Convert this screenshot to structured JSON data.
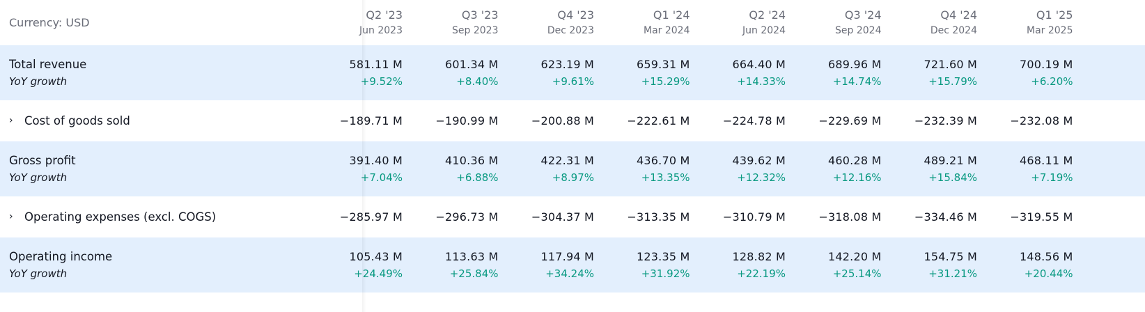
{
  "header": {
    "currency_label": "Currency: USD",
    "periods": [
      {
        "quarter": "Q2 '23",
        "date": "Jun 2023"
      },
      {
        "quarter": "Q3 '23",
        "date": "Sep 2023"
      },
      {
        "quarter": "Q4 '23",
        "date": "Dec 2023"
      },
      {
        "quarter": "Q1 '24",
        "date": "Mar 2024"
      },
      {
        "quarter": "Q2 '24",
        "date": "Jun 2024"
      },
      {
        "quarter": "Q3 '24",
        "date": "Sep 2024"
      },
      {
        "quarter": "Q4 '24",
        "date": "Dec 2024"
      },
      {
        "quarter": "Q1 '25",
        "date": "Mar 2025"
      }
    ]
  },
  "rows": [
    {
      "name": "Total revenue",
      "sub": "YoY growth",
      "expandable": false,
      "highlight": true,
      "values": [
        "581.11 M",
        "601.34 M",
        "623.19 M",
        "659.31 M",
        "664.40 M",
        "689.96 M",
        "721.60 M",
        "700.19 M"
      ],
      "growth": [
        "+9.52%",
        "+8.40%",
        "+9.61%",
        "+15.29%",
        "+14.33%",
        "+14.74%",
        "+15.79%",
        "+6.20%"
      ]
    },
    {
      "name": "Cost of goods sold",
      "expandable": true,
      "highlight": false,
      "values": [
        "−189.71 M",
        "−190.99 M",
        "−200.88 M",
        "−222.61 M",
        "−224.78 M",
        "−229.69 M",
        "−232.39 M",
        "−232.08 M"
      ]
    },
    {
      "name": "Gross profit",
      "sub": "YoY growth",
      "expandable": false,
      "highlight": true,
      "values": [
        "391.40 M",
        "410.36 M",
        "422.31 M",
        "436.70 M",
        "439.62 M",
        "460.28 M",
        "489.21 M",
        "468.11 M"
      ],
      "growth": [
        "+7.04%",
        "+6.88%",
        "+8.97%",
        "+13.35%",
        "+12.32%",
        "+12.16%",
        "+15.84%",
        "+7.19%"
      ]
    },
    {
      "name": "Operating expenses (excl. COGS)",
      "expandable": true,
      "highlight": false,
      "values": [
        "−285.97 M",
        "−296.73 M",
        "−304.37 M",
        "−313.35 M",
        "−310.79 M",
        "−318.08 M",
        "−334.46 M",
        "−319.55 M"
      ]
    },
    {
      "name": "Operating income",
      "sub": "YoY growth",
      "expandable": false,
      "highlight": true,
      "values": [
        "105.43 M",
        "113.63 M",
        "117.94 M",
        "123.35 M",
        "128.82 M",
        "142.20 M",
        "154.75 M",
        "148.56 M"
      ],
      "growth": [
        "+24.49%",
        "+25.84%",
        "+34.24%",
        "+31.92%",
        "+22.19%",
        "+25.14%",
        "+31.21%",
        "+20.44%"
      ]
    }
  ],
  "colors": {
    "highlight_bg": "#e3effd",
    "positive": "#089981",
    "header_text": "#6a6d78"
  },
  "icons": {
    "expand": "chevron-right-icon"
  }
}
